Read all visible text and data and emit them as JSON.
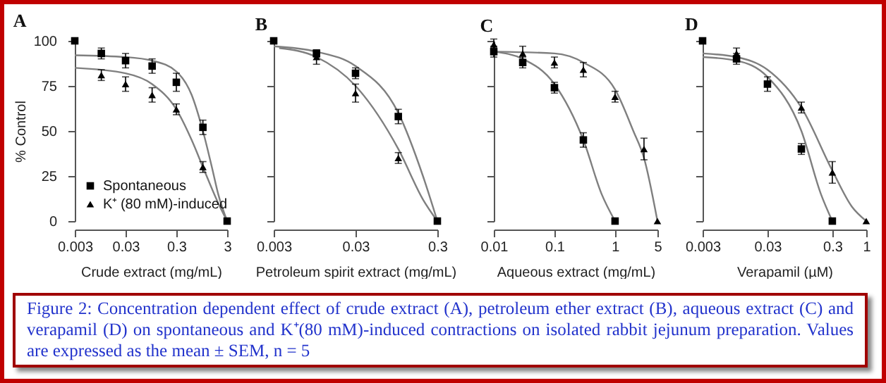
{
  "chart_data": [
    {
      "type": "scatter",
      "title": "A",
      "xlabel": "Crude extract (mg/mL)",
      "ylabel": "% Control",
      "log": "x",
      "xlim": [
        0.003,
        3
      ],
      "xticks": [
        0.003,
        0.03,
        0.3,
        3
      ],
      "ylim": [
        0,
        100
      ],
      "yticks": [
        0,
        25,
        50,
        75,
        100
      ],
      "grid": false,
      "legend": "bottom left",
      "annotations": [
        "Figure 2:  Concentration dependent effect of crude extract (A), petroleum ether extract (B), aqueous extract (C) and verapamil (D) on spontaneous and K⁺(80 mM)-induced contractions on isolated rabbit jejunum preparation. Values are expressed as the mean ± SEM, n = 5"
      ],
      "series": [
        {
          "name": "Spontaneous",
          "color": "#000000",
          "marker": "square",
          "x": [
            0.003,
            0.01,
            0.03,
            0.1,
            0.3,
            1,
            3
          ],
          "values": [
            100,
            93,
            89,
            86,
            77,
            52,
            0
          ],
          "errors": [
            null,
            3,
            4,
            4,
            5,
            4,
            null
          ]
        },
        {
          "name": "K⁺ (80 mM)-induced",
          "color": "#000000",
          "marker": "triangle",
          "x": [
            0.01,
            0.03,
            0.1,
            0.3,
            1
          ],
          "values": [
            81,
            76,
            70,
            62,
            30
          ],
          "errors": [
            3,
            4,
            4,
            3,
            3
          ]
        },
        {
          "type": "line",
          "color": "#7f7f7f",
          "x": [
            0.003,
            0.03,
            0.1,
            0.3,
            0.6,
            1,
            1.5,
            2,
            3
          ],
          "values": [
            92,
            91,
            89,
            83,
            70,
            50,
            30,
            15,
            0
          ]
        },
        {
          "type": "line",
          "color": "#7f7f7f",
          "x": [
            0.003,
            0.03,
            0.1,
            0.3,
            0.6,
            1,
            2,
            3
          ],
          "values": [
            85,
            82,
            76,
            62,
            45,
            30,
            10,
            0
          ]
        }
      ]
    },
    {
      "type": "scatter",
      "title": "B",
      "xlabel": "Petroleum spirit extract (mg/mL)",
      "log": "x",
      "xlim": [
        0.003,
        0.3
      ],
      "xticks": [
        0.003,
        0.03,
        0.3
      ],
      "ylim": [
        0,
        100
      ],
      "yticks": [
        0,
        25,
        50,
        75,
        100
      ],
      "grid": false,
      "tick_labels": "x",
      "series": [
        {
          "color": "#000000",
          "marker": "square",
          "x": [
            0.003,
            0.01,
            0.03,
            0.1,
            0.3
          ],
          "values": [
            100,
            93,
            82,
            58,
            0
          ],
          "errors": [
            null,
            2,
            3,
            4,
            null
          ]
        },
        {
          "color": "#000000",
          "marker": "triangle",
          "x": [
            0.01,
            0.03,
            0.1
          ],
          "values": [
            91,
            71,
            35
          ],
          "errors": [
            4,
            5,
            3
          ]
        },
        {
          "type": "line",
          "color": "#7f7f7f",
          "x": [
            0.003,
            0.01,
            0.03,
            0.1,
            0.2,
            0.3
          ],
          "values": [
            97,
            94,
            86,
            60,
            25,
            0
          ]
        },
        {
          "type": "line",
          "color": "#7f7f7f",
          "x": [
            0.0035,
            0.01,
            0.03,
            0.1,
            0.2,
            0.3
          ],
          "values": [
            96,
            91,
            75,
            40,
            12,
            0
          ]
        }
      ]
    },
    {
      "type": "scatter",
      "title": "C",
      "xlabel": "Aqueous extract (mg/mL)",
      "log": "x",
      "xlim": [
        0.01,
        5
      ],
      "xticks": [
        0.01,
        0.1,
        1,
        5
      ],
      "ylim": [
        0,
        100
      ],
      "yticks": [
        0,
        25,
        50,
        75,
        100
      ],
      "grid": false,
      "tick_labels": "x",
      "series": [
        {
          "color": "#000000",
          "marker": "square",
          "x": [
            0.01,
            0.03,
            0.1,
            0.3,
            1
          ],
          "values": [
            94,
            88,
            74,
            45,
            0
          ],
          "errors": [
            3,
            3,
            3,
            4,
            null
          ]
        },
        {
          "color": "#000000",
          "marker": "triangle",
          "x": [
            0.01,
            0.03,
            0.1,
            0.3,
            1,
            3,
            5
          ],
          "values": [
            98,
            93,
            88,
            84,
            69,
            40,
            0
          ],
          "errors": [
            3,
            4,
            3,
            4,
            3,
            6,
            null
          ]
        },
        {
          "type": "line",
          "color": "#7f7f7f",
          "x": [
            0.01,
            0.03,
            0.1,
            0.3,
            0.6,
            1
          ],
          "values": [
            94,
            90,
            76,
            45,
            15,
            0
          ]
        },
        {
          "type": "line",
          "color": "#7f7f7f",
          "x": [
            0.01,
            0.1,
            0.3,
            1,
            2,
            3,
            5
          ],
          "values": [
            94,
            93,
            88,
            73,
            50,
            35,
            0
          ]
        }
      ]
    },
    {
      "type": "scatter",
      "title": "D",
      "xlabel": "Verapamil (µM)",
      "log": "x",
      "xlim": [
        0.003,
        1
      ],
      "xticks": [
        0.003,
        0.03,
        0.3,
        1
      ],
      "ylim": [
        0,
        100
      ],
      "yticks": [
        0,
        25,
        50,
        75,
        100
      ],
      "grid": false,
      "tick_labels": "x",
      "series": [
        {
          "color": "#000000",
          "marker": "square",
          "x": [
            0.003,
            0.01,
            0.03,
            0.1,
            0.3
          ],
          "values": [
            100,
            90,
            76,
            40,
            0
          ],
          "errors": [
            null,
            3,
            4,
            3,
            null
          ]
        },
        {
          "color": "#000000",
          "marker": "triangle",
          "x": [
            0.01,
            0.1,
            0.3,
            1
          ],
          "values": [
            93,
            63,
            27,
            0
          ],
          "errors": [
            3,
            3,
            6,
            null
          ]
        },
        {
          "type": "line",
          "color": "#7f7f7f",
          "x": [
            0.003,
            0.01,
            0.03,
            0.1,
            0.2,
            0.3
          ],
          "values": [
            91,
            89,
            80,
            50,
            15,
            0
          ]
        },
        {
          "type": "line",
          "color": "#7f7f7f",
          "x": [
            0.003,
            0.01,
            0.03,
            0.1,
            0.3,
            0.6,
            1
          ],
          "values": [
            93,
            91,
            84,
            63,
            28,
            8,
            0
          ]
        }
      ]
    }
  ]
}
